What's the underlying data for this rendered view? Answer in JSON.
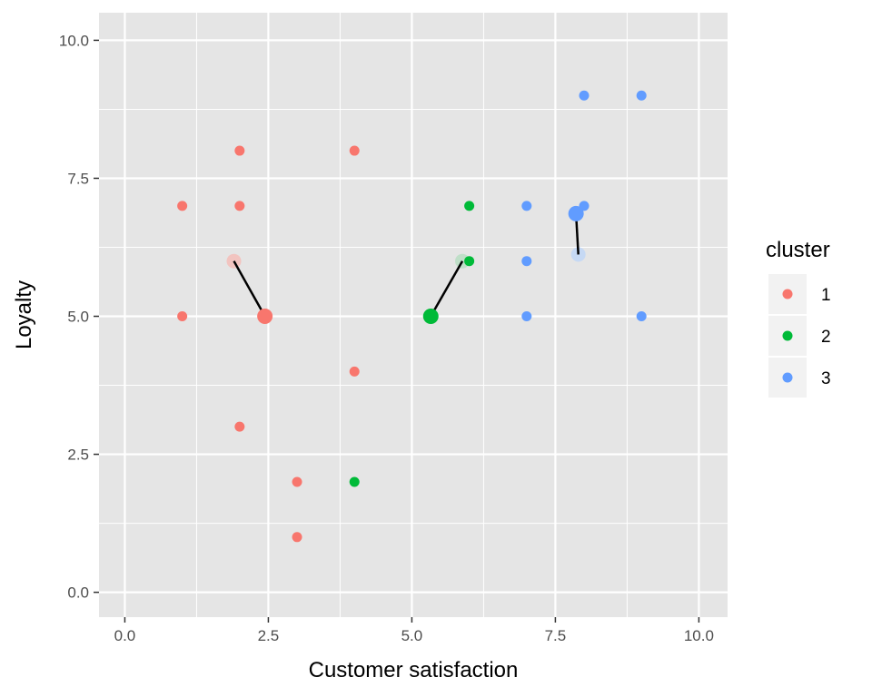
{
  "chart_data": {
    "type": "scatter",
    "title": "",
    "xlabel": "Customer satisfaction",
    "ylabel": "Loyalty",
    "xlim": [
      -0.45,
      10.5
    ],
    "ylim": [
      -0.45,
      10.5
    ],
    "x_ticks": [
      0,
      2.5,
      5,
      7.5,
      10
    ],
    "x_tick_labels": [
      "0.0",
      "2.5",
      "5.0",
      "7.5",
      "10.0"
    ],
    "y_ticks": [
      0,
      2.5,
      5,
      7.5,
      10
    ],
    "y_tick_labels": [
      "0.0",
      "2.5",
      "5.0",
      "7.5",
      "10.0"
    ],
    "grid": true,
    "legend": {
      "title": "cluster",
      "placement": "right",
      "entries": [
        {
          "label": "1",
          "color": "#F8766D"
        },
        {
          "label": "2",
          "color": "#00BA38"
        },
        {
          "label": "3",
          "color": "#619CFF"
        }
      ]
    },
    "points": [
      {
        "x": 1,
        "y": 7,
        "cluster": "1"
      },
      {
        "x": 1,
        "y": 5,
        "cluster": "1"
      },
      {
        "x": 2,
        "y": 8,
        "cluster": "1"
      },
      {
        "x": 2,
        "y": 7,
        "cluster": "1"
      },
      {
        "x": 2,
        "y": 3,
        "cluster": "1"
      },
      {
        "x": 3,
        "y": 2,
        "cluster": "1"
      },
      {
        "x": 3,
        "y": 1,
        "cluster": "1"
      },
      {
        "x": 4,
        "y": 8,
        "cluster": "1"
      },
      {
        "x": 4,
        "y": 4,
        "cluster": "1"
      },
      {
        "x": 4,
        "y": 2,
        "cluster": "2"
      },
      {
        "x": 6,
        "y": 7,
        "cluster": "2"
      },
      {
        "x": 6,
        "y": 6,
        "cluster": "2"
      },
      {
        "x": 7,
        "y": 7,
        "cluster": "3"
      },
      {
        "x": 7,
        "y": 6,
        "cluster": "3"
      },
      {
        "x": 7,
        "y": 5,
        "cluster": "3"
      },
      {
        "x": 8,
        "y": 9,
        "cluster": "3"
      },
      {
        "x": 8,
        "y": 7,
        "cluster": "3"
      },
      {
        "x": 9,
        "y": 9,
        "cluster": "3"
      },
      {
        "x": 9,
        "y": 5,
        "cluster": "3"
      }
    ],
    "centroid_moves": [
      {
        "cluster": "1",
        "from": {
          "x": 1.9,
          "y": 6.0
        },
        "to": {
          "x": 2.44,
          "y": 5.0
        }
      },
      {
        "cluster": "2",
        "from": {
          "x": 5.88,
          "y": 6.0
        },
        "to": {
          "x": 5.33,
          "y": 5.0
        }
      },
      {
        "cluster": "3",
        "from": {
          "x": 7.9,
          "y": 6.12
        },
        "to": {
          "x": 7.86,
          "y": 6.86
        }
      }
    ],
    "colors": {
      "cluster_1": "#F8766D",
      "cluster_2": "#00BA38",
      "cluster_3": "#619CFF",
      "cluster_1_old_centroid": "#F2C4C0",
      "cluster_2_old_centroid": "#BFDFC8",
      "cluster_3_old_centroid": "#C6D9F4",
      "panel_background": "#E5E5E5",
      "gridline": "#FFFFFF",
      "move_line": "#000000"
    }
  }
}
